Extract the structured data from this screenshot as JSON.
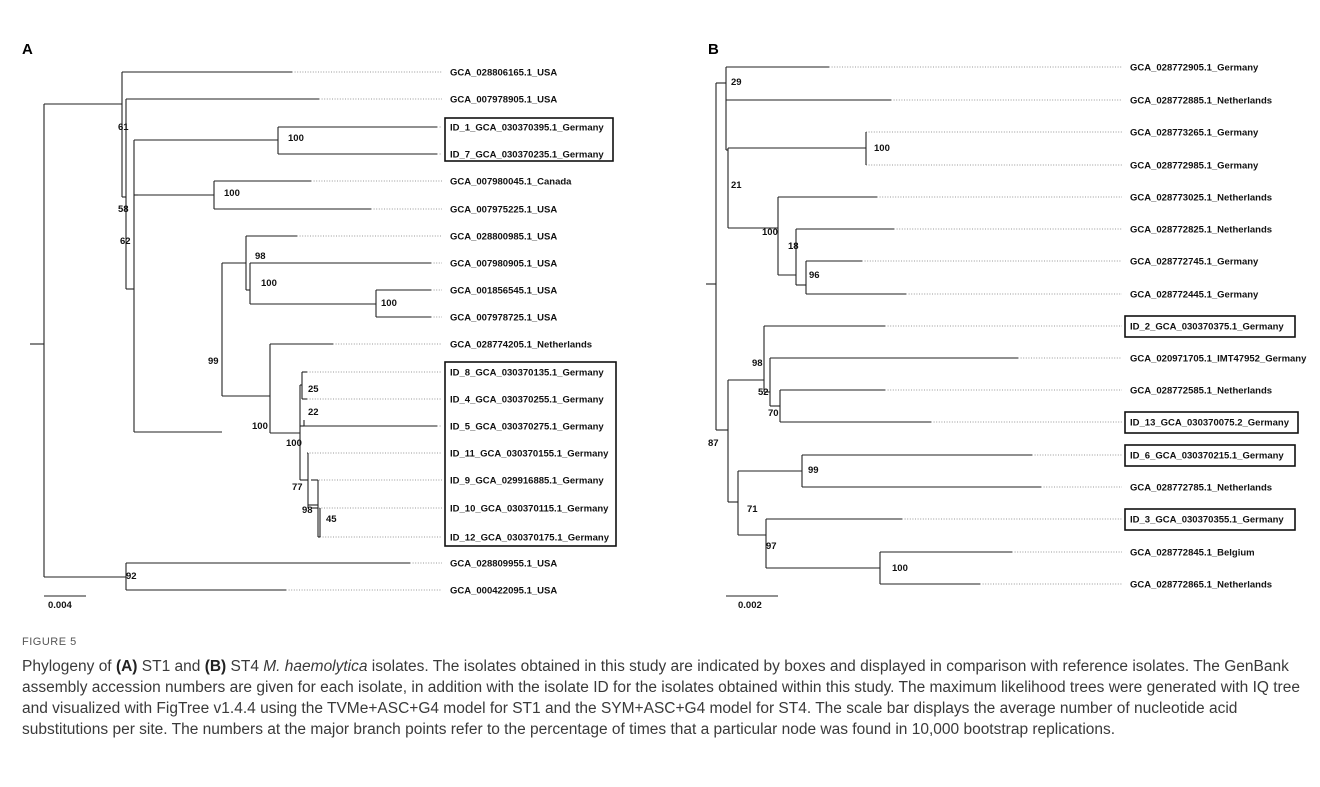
{
  "figure": {
    "number_label": "FIGURE 5",
    "caption": {
      "p1": "Phylogeny of ",
      "a": "(A)",
      "p2": " ST1 and ",
      "b": "(B)",
      "p3": " ST4 ",
      "species": "M. haemolytica",
      "p4": " isolates. The isolates obtained in this study are indicated by boxes and displayed in comparison with reference isolates. The GenBank assembly accession numbers are given for each isolate, in addition with the isolate ID for the isolates obtained within this study. The maximum likelihood trees were generated with IQ tree and visualized with FigTree v1.4.4 using the TVMe+ASC+G4 model for ST1 and the SYM+ASC+G4 model for ST4. The scale bar displays the average number of nucleotide acid substitutions per site. The numbers at the major branch points refer to the percentage of times that a particular node was found in 10,000 bootstrap replications."
    }
  },
  "panels": [
    {
      "letter": "A",
      "scale_label": "0.004",
      "leaves": [
        {
          "label": "GCA_028806165.1_USA",
          "boxed": false
        },
        {
          "label": "GCA_007978905.1_USA",
          "boxed": false
        },
        {
          "label": "ID_1_GCA_030370395.1_Germany",
          "boxed": true
        },
        {
          "label": "ID_7_GCA_030370235.1_Germany",
          "boxed": true
        },
        {
          "label": "GCA_007980045.1_Canada",
          "boxed": false
        },
        {
          "label": "GCA_007975225.1_USA",
          "boxed": false
        },
        {
          "label": "GCA_028800985.1_USA",
          "boxed": false
        },
        {
          "label": "GCA_007980905.1_USA",
          "boxed": false
        },
        {
          "label": "GCA_001856545.1_USA",
          "boxed": false
        },
        {
          "label": "GCA_007978725.1_USA",
          "boxed": false
        },
        {
          "label": "GCA_028774205.1_Netherlands",
          "boxed": false
        },
        {
          "label": "ID_8_GCA_030370135.1_Germany",
          "boxed": true
        },
        {
          "label": "ID_4_GCA_030370255.1_Germany",
          "boxed": true
        },
        {
          "label": "ID_5_GCA_030370275.1_Germany",
          "boxed": true
        },
        {
          "label": "ID_11_GCA_030370155.1_Germany",
          "boxed": true
        },
        {
          "label": "ID_9_GCA_029916885.1_Germany",
          "boxed": true
        },
        {
          "label": "ID_10_GCA_030370115.1_Germany",
          "boxed": true
        },
        {
          "label": "ID_12_GCA_030370175.1_Germany",
          "boxed": true
        },
        {
          "label": "GCA_028809955.1_USA",
          "boxed": false
        },
        {
          "label": "GCA_000422095.1_USA",
          "boxed": false
        }
      ],
      "bootstrap_values": [
        "61",
        "100",
        "58",
        "100",
        "62",
        "98",
        "100",
        "100",
        "99",
        "100",
        "25",
        "22",
        "100",
        "77",
        "98",
        "45",
        "92"
      ]
    },
    {
      "letter": "B",
      "scale_label": "0.002",
      "leaves": [
        {
          "label": "GCA_028772905.1_Germany",
          "boxed": false
        },
        {
          "label": "GCA_028772885.1_Netherlands",
          "boxed": false
        },
        {
          "label": "GCA_028773265.1_Germany",
          "boxed": false
        },
        {
          "label": "GCA_028772985.1_Germany",
          "boxed": false
        },
        {
          "label": "GCA_028773025.1_Netherlands",
          "boxed": false
        },
        {
          "label": "GCA_028772825.1_Netherlands",
          "boxed": false
        },
        {
          "label": "GCA_028772745.1_Germany",
          "boxed": false
        },
        {
          "label": "GCA_028772445.1_Germany",
          "boxed": false
        },
        {
          "label": "ID_2_GCA_030370375.1_Germany",
          "boxed": true
        },
        {
          "label": "GCA_020971705.1_IMT47952_Germany",
          "boxed": false
        },
        {
          "label": "GCA_028772585.1_Netherlands",
          "boxed": false
        },
        {
          "label": "ID_13_GCA_030370075.2_Germany",
          "boxed": true
        },
        {
          "label": "ID_6_GCA_030370215.1_Germany",
          "boxed": true
        },
        {
          "label": "GCA_028772785.1_Netherlands",
          "boxed": false
        },
        {
          "label": "ID_3_GCA_030370355.1_Germany",
          "boxed": true
        },
        {
          "label": "GCA_028772845.1_Belgium",
          "boxed": false
        },
        {
          "label": "GCA_028772865.1_Netherlands",
          "boxed": false
        }
      ],
      "bootstrap_values": [
        "29",
        "100",
        "21",
        "100",
        "18",
        "96",
        "98",
        "52",
        "70",
        "87",
        "99",
        "71",
        "97",
        "100"
      ]
    }
  ]
}
